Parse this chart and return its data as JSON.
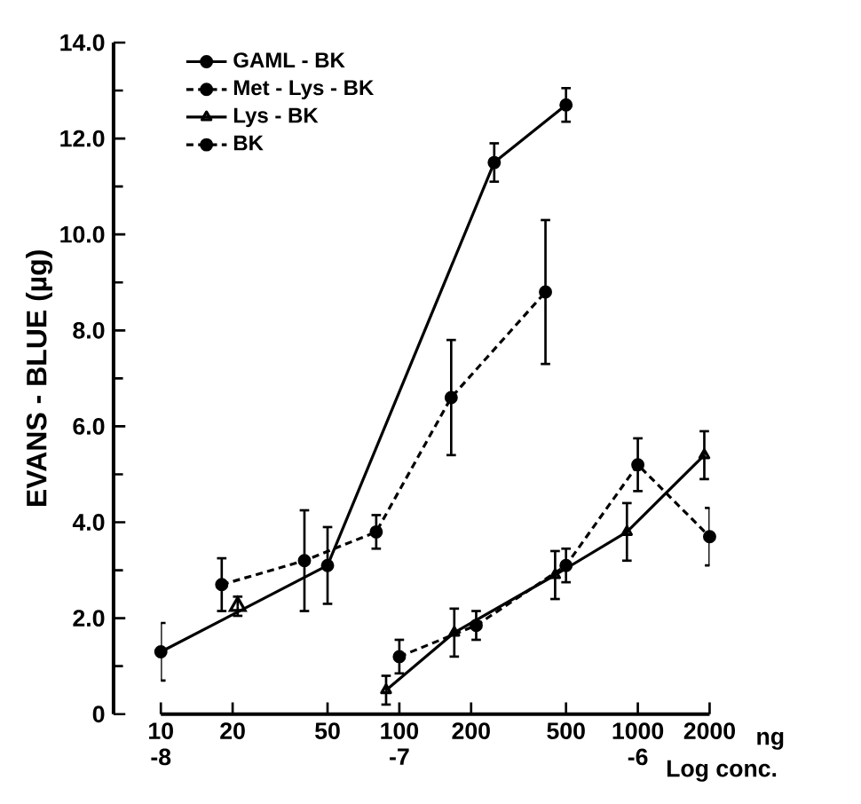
{
  "chart_data": {
    "type": "line",
    "ylabel": "EVANS - BLUE (µg)",
    "xlabel": "ng",
    "x2label": "Log conc.",
    "log": "x",
    "grid": false,
    "legend": "top left",
    "xlim": [
      10,
      2000
    ],
    "xticks": [
      10,
      20,
      50,
      100,
      200,
      500,
      1000,
      2000
    ],
    "x2lim": [
      -8,
      -5.699
    ],
    "x2ticks": [
      -8,
      -7,
      -6
    ],
    "ylim": [
      0,
      14
    ],
    "yticks": [
      {
        "value": 0,
        "label": "0"
      },
      {
        "value": 2,
        "label": "2.0"
      },
      {
        "value": 4,
        "label": "4.0"
      },
      {
        "value": 6,
        "label": "6.0"
      },
      {
        "value": 8,
        "label": "8.0"
      },
      {
        "value": 10,
        "label": "10.0"
      },
      {
        "value": 12,
        "label": "12.0"
      },
      {
        "value": 14,
        "label": "14.0"
      }
    ],
    "series": [
      {
        "name": "GAML - BK",
        "color": "#000000",
        "marker": "circle",
        "line_style": "solid",
        "x": [
          10,
          50,
          250,
          500
        ],
        "values": [
          1.3,
          3.1,
          11.5,
          12.7
        ],
        "errors": [
          0.6,
          0.8,
          0.4,
          0.35
        ]
      },
      {
        "name": "Met - Lys - BK",
        "color": "#000000",
        "marker": "circle",
        "line_style": "dashed",
        "x": [
          18,
          40,
          80,
          165,
          410
        ],
        "values": [
          2.7,
          3.2,
          3.8,
          6.6,
          8.8
        ],
        "errors": [
          0.55,
          1.05,
          0.35,
          1.2,
          1.5
        ]
      },
      {
        "name": "Lys - BK",
        "color": "#000000",
        "marker": "triangle",
        "line_style": "solid",
        "x": [
          88,
          170,
          450,
          900,
          1900
        ],
        "values": [
          0.5,
          1.7,
          2.9,
          3.8,
          5.4
        ],
        "errors": [
          0.3,
          0.5,
          0.5,
          0.6,
          0.5
        ]
      },
      {
        "name": "BK",
        "color": "#000000",
        "marker": "circle",
        "line_style": "dashed",
        "x": [
          100,
          210,
          500,
          1000,
          2000
        ],
        "values": [
          1.2,
          1.85,
          3.1,
          5.2,
          3.7
        ],
        "errors": [
          0.35,
          0.3,
          0.35,
          0.55,
          0.6
        ]
      },
      {
        "type": "scatter",
        "color": "#000000",
        "marker": "triangle",
        "x": [
          21
        ],
        "values": [
          2.25
        ],
        "errors": [
          0.2
        ]
      }
    ]
  }
}
